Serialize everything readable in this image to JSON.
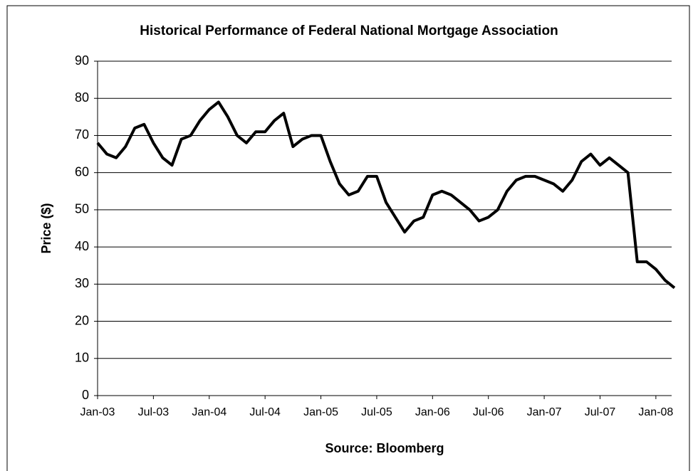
{
  "chart_data": {
    "type": "line",
    "title": "Historical Performance of Federal National Mortgage Association",
    "x_label": "Source: Bloomberg",
    "y_label": "Price ($)",
    "x": [
      "2003-01",
      "2003-02",
      "2003-03",
      "2003-04",
      "2003-05",
      "2003-06",
      "2003-07",
      "2003-08",
      "2003-09",
      "2003-10",
      "2003-11",
      "2003-12",
      "2004-01",
      "2004-02",
      "2004-03",
      "2004-04",
      "2004-05",
      "2004-06",
      "2004-07",
      "2004-08",
      "2004-09",
      "2004-10",
      "2004-11",
      "2004-12",
      "2005-01",
      "2005-02",
      "2005-03",
      "2005-04",
      "2005-05",
      "2005-06",
      "2005-07",
      "2005-08",
      "2005-09",
      "2005-10",
      "2005-11",
      "2005-12",
      "2006-01",
      "2006-02",
      "2006-03",
      "2006-04",
      "2006-05",
      "2006-06",
      "2006-07",
      "2006-08",
      "2006-09",
      "2006-10",
      "2006-11",
      "2006-12",
      "2007-01",
      "2007-02",
      "2007-03",
      "2007-04",
      "2007-05",
      "2007-06",
      "2007-07",
      "2007-08",
      "2007-09",
      "2007-10",
      "2007-11",
      "2007-12",
      "2008-01",
      "2008-02",
      "2008-03"
    ],
    "series": [
      {
        "name": "Price",
        "color": "#000000",
        "values": [
          68,
          65,
          64,
          67,
          72,
          73,
          68,
          64,
          62,
          69,
          70,
          74,
          77,
          79,
          75,
          70,
          68,
          71,
          71,
          74,
          76,
          67,
          69,
          70,
          70,
          63,
          57,
          54,
          55,
          59,
          59,
          52,
          48,
          44,
          47,
          48,
          54,
          55,
          54,
          52,
          50,
          47,
          48,
          50,
          55,
          58,
          59,
          59,
          58,
          57,
          55,
          58,
          63,
          65,
          62,
          64,
          62,
          60,
          36,
          36,
          34,
          31,
          29
        ]
      }
    ],
    "xlim": [
      "2003-01",
      "2008-03"
    ],
    "xticks": [
      {
        "value": "2003-01",
        "label": "Jan-03"
      },
      {
        "value": "2003-07",
        "label": "Jul-03"
      },
      {
        "value": "2004-01",
        "label": "Jan-04"
      },
      {
        "value": "2004-07",
        "label": "Jul-04"
      },
      {
        "value": "2005-01",
        "label": "Jan-05"
      },
      {
        "value": "2005-07",
        "label": "Jul-05"
      },
      {
        "value": "2006-01",
        "label": "Jan-06"
      },
      {
        "value": "2006-07",
        "label": "Jul-06"
      },
      {
        "value": "2007-01",
        "label": "Jan-07"
      },
      {
        "value": "2007-07",
        "label": "Jul-07"
      },
      {
        "value": "2008-01",
        "label": "Jan-08"
      }
    ],
    "ylim": [
      0,
      90
    ],
    "yticks": [
      0,
      10,
      20,
      30,
      40,
      50,
      60,
      70,
      80,
      90
    ],
    "grid": true
  }
}
